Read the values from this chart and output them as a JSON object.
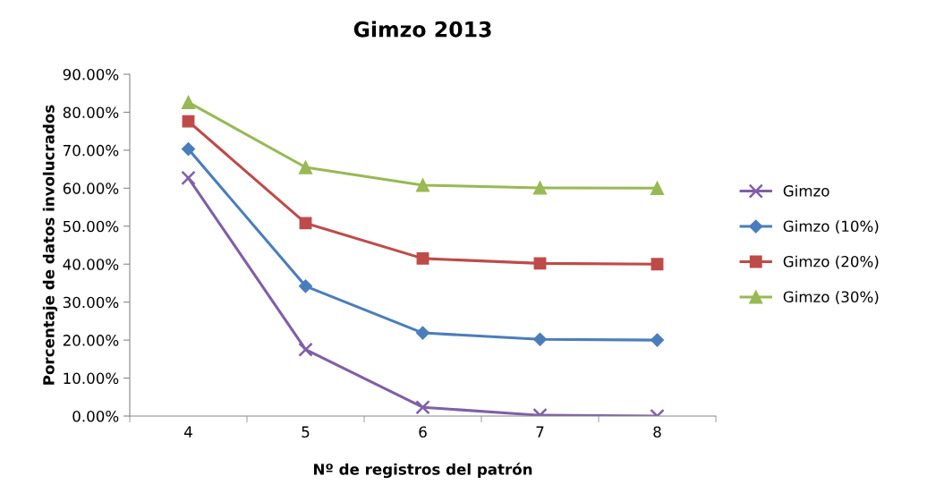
{
  "chart_data": {
    "type": "line",
    "title": "Gimzo 2013",
    "xlabel": "Nº de registros del patrón",
    "ylabel": "Porcentaje de datos involucrados",
    "categories": [
      "4",
      "5",
      "6",
      "7",
      "8"
    ],
    "series": [
      {
        "name": "Gimzo",
        "color": "#7f5fa8",
        "marker": "cross",
        "values": [
          62.7,
          17.5,
          2.3,
          0.2,
          0.0
        ]
      },
      {
        "name": "Gimzo (10%)",
        "color": "#4a7ebb",
        "marker": "diamond",
        "values": [
          70.3,
          34.2,
          21.9,
          20.2,
          20.0
        ]
      },
      {
        "name": "Gimzo (20%)",
        "color": "#be4b48",
        "marker": "square",
        "values": [
          77.6,
          50.8,
          41.5,
          40.2,
          40.0
        ]
      },
      {
        "name": "Gimzo (30%)",
        "color": "#98b954",
        "marker": "triangle",
        "values": [
          82.6,
          65.5,
          60.8,
          60.1,
          60.0
        ]
      }
    ],
    "ylim": [
      0,
      90
    ],
    "yticks": [
      {
        "value": 0,
        "label": "0.00%"
      },
      {
        "value": 10,
        "label": "10.00%"
      },
      {
        "value": 20,
        "label": "20.00%"
      },
      {
        "value": 30,
        "label": "30.00%"
      },
      {
        "value": 40,
        "label": "40.00%"
      },
      {
        "value": 50,
        "label": "50.00%"
      },
      {
        "value": 60,
        "label": "60.00%"
      },
      {
        "value": 70,
        "label": "70.00%"
      },
      {
        "value": 80,
        "label": "80.00%"
      },
      {
        "value": 90,
        "label": "90.00%"
      }
    ],
    "grid": false,
    "legend": "right",
    "line_style": "solid"
  }
}
